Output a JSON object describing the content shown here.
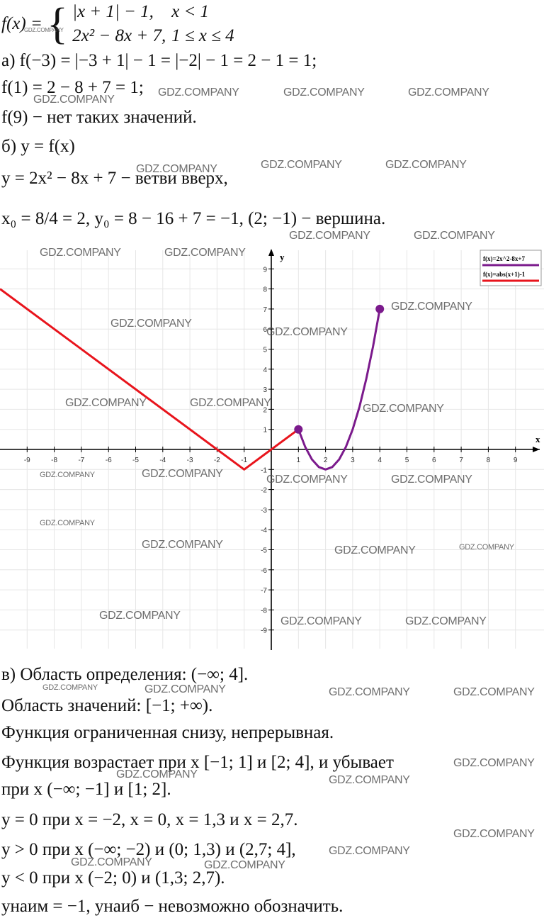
{
  "text": {
    "fx_label": "f(x) =",
    "case1": "|x + 1| − 1,",
    "cond1": "x < 1",
    "case2": "2x² − 8x + 7,",
    "cond2": "1 ≤ x ≤ 4",
    "line_a": "а) f(−3) = |−3 + 1| − 1 = |−2| − 1 = 2 − 1 = 1;",
    "line_f1": "f(1) = 2 − 8 + 7 = 1;",
    "line_f9": "f(9) − нет таких значений.",
    "line_b": "б) y = f(x)",
    "line_parab": "y = 2x² − 8x + 7 − ветви вверх,",
    "line_vertex": "x₀ = 8/4 = 2,        y₀ = 8 − 16 + 7 = −1,        (2; −1) − вершина.",
    "line_domain": "в) Область определения: (−∞; 4].",
    "line_range": "Область значений: [−1; +∞).",
    "line_bounded": "Функция ограниченная снизу, непрерывная.",
    "line_incr": "Функция возрастает при x [−1; 1] и [2; 4], и убывает",
    "line_decr": "при x (−∞; −1] и [1; 2].",
    "line_zero": "y = 0 при x = −2, x = 0, x = 1,3 и x = 2,7.",
    "line_pos": "y > 0 при x (−∞; −2) и (0; 1,3) и (2,7; 4],",
    "line_neg": "y < 0 при x (−2; 0) и (1,3; 2,7).",
    "line_minmax": "yнаим = −1,         yнаиб − невозможно обозначить."
  },
  "watermark": "GDZ.COMPANY",
  "chart_data": {
    "type": "line",
    "xlabel": "x",
    "ylabel": "y",
    "xlim": [
      -10,
      10
    ],
    "ylim": [
      -10,
      10
    ],
    "x_ticks": [
      -9,
      -8,
      -7,
      -6,
      -5,
      -4,
      -3,
      -2,
      -1,
      1,
      2,
      3,
      4,
      5,
      6,
      7,
      8,
      9
    ],
    "y_ticks": [
      -9,
      -8,
      -7,
      -6,
      -5,
      -4,
      -3,
      -2,
      -1,
      1,
      2,
      3,
      4,
      5,
      6,
      7,
      8,
      9
    ],
    "series": [
      {
        "name": "f(x)=2x^2-8x+7",
        "color": "#7b1a8c",
        "x": [
          1,
          1.25,
          1.5,
          1.75,
          2,
          2.25,
          2.5,
          2.75,
          3,
          3.25,
          3.5,
          3.75,
          4
        ],
        "values": [
          1,
          0.125,
          -0.5,
          -0.875,
          -1,
          -0.875,
          -0.5,
          0.125,
          1,
          2.125,
          3.5,
          5.125,
          7
        ]
      },
      {
        "name": "f(x)=abs(x+1)-1",
        "color": "#e8141c",
        "x": [
          -10,
          -1,
          1
        ],
        "values": [
          8,
          -1,
          1
        ]
      }
    ],
    "points": [
      {
        "x": 1,
        "y": 1,
        "color": "#7b1a8c"
      },
      {
        "x": 4,
        "y": 7,
        "color": "#7b1a8c"
      }
    ],
    "legend": "top-right"
  }
}
